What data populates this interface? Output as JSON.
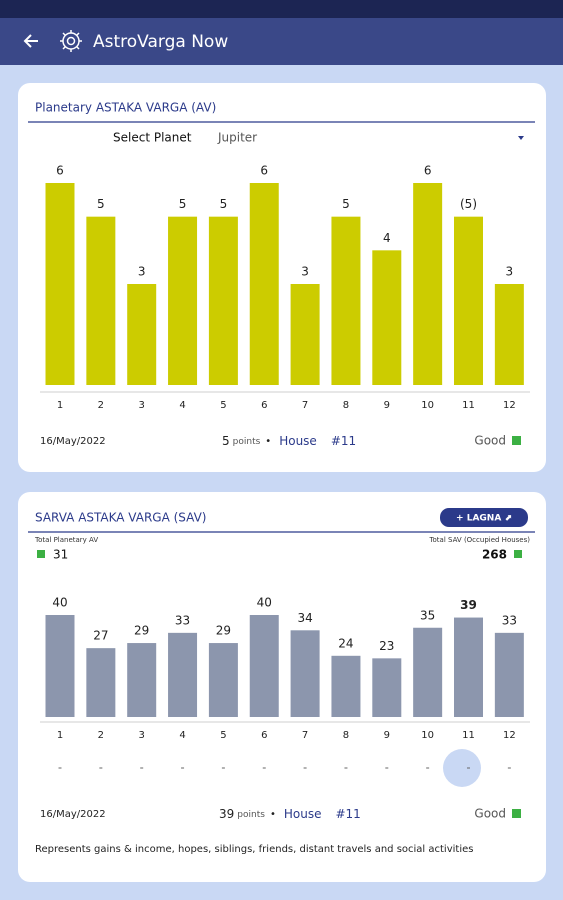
{
  "app_bar": {
    "title": "AstroVarga Now"
  },
  "av_card": {
    "title": "Planetary ASTAKA VARGA (AV)",
    "select_label": "Select Planet",
    "select_value": "Jupiter",
    "chart_data": {
      "type": "bar",
      "categories": [
        "1",
        "2",
        "3",
        "4",
        "5",
        "6",
        "7",
        "8",
        "9",
        "10",
        "11",
        "12"
      ],
      "values": [
        6,
        5,
        3,
        5,
        5,
        6,
        3,
        5,
        4,
        6,
        5,
        3
      ],
      "value_labels": [
        "6",
        "5",
        "3",
        "5",
        "5",
        "6",
        "3",
        "5",
        "4",
        "6",
        "(5)",
        "3"
      ],
      "color": "#cccc00"
    },
    "footer": {
      "date": "16/May/2022",
      "points": "5",
      "points_unit": "points",
      "bullet": "•",
      "house_label": "House",
      "house": "#11",
      "status": "Good"
    }
  },
  "sav_card": {
    "title": "SARVA ASTAKA VARGA (SAV)",
    "button": "+ LAGNA ⬈",
    "left_label": "Total Planetary AV",
    "left_value": "31",
    "right_label": "Total SAV (Occupied Houses)",
    "right_value": "268",
    "chart_data": {
      "type": "bar",
      "categories": [
        "1",
        "2",
        "3",
        "4",
        "5",
        "6",
        "7",
        "8",
        "9",
        "10",
        "11",
        "12"
      ],
      "values": [
        40,
        27,
        29,
        33,
        29,
        40,
        34,
        24,
        23,
        35,
        39,
        33
      ],
      "color": "#8c96ad"
    },
    "footer": {
      "date": "16/May/2022",
      "points": "39",
      "points_unit": "points",
      "bullet": "•",
      "house_label": "House",
      "house": "#11",
      "status": "Good"
    },
    "description": "Represents gains & income, hopes, siblings, friends, distant travels and social activities"
  }
}
